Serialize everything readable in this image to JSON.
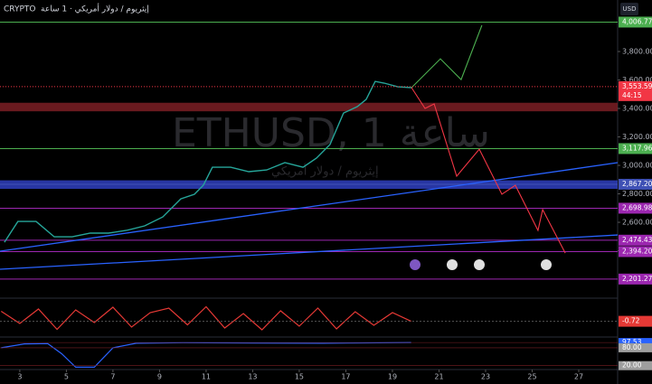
{
  "header": {
    "source": "CRYPTO",
    "description": "إيثريوم / دولار أمريكي · 1 ساعة",
    "currency": "USD"
  },
  "chart_data": {
    "type": "line",
    "title": "ETHUSD, 1 ساعة",
    "subtitle": "إيثريوم / دولار أمريكي",
    "x": [
      2.34,
      2.92,
      3.7,
      4.48,
      5.25,
      6.03,
      6.81,
      7.58,
      8.36,
      9.14,
      9.91,
      10.5,
      10.88,
      11.27,
      12.05,
      12.83,
      13.6,
      14.38,
      15.16,
      15.74,
      16.32,
      16.9,
      17.49,
      17.87,
      18.26,
      18.65,
      19.23,
      19.82
    ],
    "series": [
      {
        "color": "#26a69a",
        "values": [
          2460,
          2606,
          2606,
          2498,
          2498,
          2524,
          2524,
          2543,
          2575,
          2638,
          2765,
          2797,
          2860,
          2987,
          2987,
          2956,
          2968,
          3019,
          2987,
          3051,
          3146,
          3368,
          3413,
          3463,
          3590,
          3578,
          3552,
          3546
        ]
      }
    ],
    "xlim": [
      2.15,
      28.67
    ],
    "ylim": [
      2067,
      4162
    ],
    "xticks": [
      3,
      5,
      7,
      9,
      11,
      13,
      15,
      17,
      19,
      21,
      23,
      25,
      27
    ],
    "yticks": [
      {
        "value": 2400,
        "label": "2,400.00"
      },
      {
        "value": 2600,
        "label": "2,600.00"
      },
      {
        "value": 2800,
        "label": "2,800.00"
      },
      {
        "value": 3000,
        "label": "3,000.00"
      },
      {
        "value": 3200,
        "label": "3,200.00"
      },
      {
        "value": 3400,
        "label": "3,400.00"
      },
      {
        "value": 3600,
        "label": "3,600.00"
      },
      {
        "value": 3800,
        "label": "3,800.00"
      }
    ],
    "levels": [
      {
        "value": 4006.77,
        "label": "4,006.77",
        "color": "#4caf50"
      },
      {
        "value": 3117.96,
        "label": "3,117.96",
        "color": "#4caf50"
      },
      {
        "value": 2867.2,
        "label": "2,867.20",
        "color": "#3f51b5"
      },
      {
        "value": 2698.98,
        "label": "2,698.98",
        "color": "#9c27b0"
      },
      {
        "value": 2474.43,
        "label": "2,474.43",
        "color": "#9c27b0"
      },
      {
        "value": 2394.2,
        "label": "2,394.20",
        "color": "#9c27b0"
      },
      {
        "value": 2201.27,
        "label": "2,201.27",
        "color": "#9c27b0"
      }
    ],
    "zones": [
      {
        "from": 3380,
        "to": 3440,
        "color": "#7b1f24"
      },
      {
        "from": 2835,
        "to": 2895,
        "color": "#2f3fc0"
      }
    ],
    "trendlines": [
      {
        "x": [
          2.15,
          28.67
        ],
        "y": [
          2397,
          3019
        ],
        "color": "#2962ff"
      },
      {
        "x": [
          2.15,
          28.67
        ],
        "y": [
          2270,
          2511
        ],
        "color": "#2962ff"
      }
    ],
    "projections": [
      {
        "color": "#4caf50",
        "x": [
          19.82,
          21.06,
          21.95,
          22.84
        ],
        "values": [
          3546,
          3749,
          3603,
          3984
        ]
      },
      {
        "color": "#f23645",
        "x": [
          19.82,
          20.4,
          20.79,
          21.76,
          22.73,
          23.7,
          24.28,
          25.25,
          25.45,
          26.42
        ],
        "values": [
          3546,
          3400,
          3432,
          2924,
          3114,
          2797,
          2860,
          2543,
          2689,
          2384
        ]
      }
    ],
    "last_price": {
      "value": 3553.59,
      "label": "3,553.59",
      "countdown": "44:15",
      "color": "#f23645"
    },
    "indicators": [
      {
        "color": "#e53935",
        "ylim": [
          -4,
          4
        ],
        "x": [
          2.2,
          3.0,
          3.8,
          4.6,
          5.4,
          6.2,
          7.0,
          7.8,
          8.6,
          9.4,
          10.2,
          11.0,
          11.8,
          12.6,
          13.4,
          14.2,
          15.0,
          15.8,
          16.6,
          17.4,
          18.2,
          19.0,
          19.8
        ],
        "values": [
          1.5,
          -1.2,
          2.0,
          -2.5,
          1.8,
          -1.0,
          2.4,
          -2.0,
          1.2,
          2.2,
          -1.5,
          2.5,
          -2.2,
          1.0,
          -2.6,
          1.6,
          -1.8,
          2.2,
          -2.4,
          1.4,
          -1.6,
          1.2,
          -0.72
        ],
        "last": {
          "value": -0.72,
          "label": "-0.72"
        }
      },
      {
        "color": "#2962ff",
        "ylim": [
          10,
          110
        ],
        "x": [
          2.2,
          3.2,
          4.2,
          4.8,
          5.4,
          6.2,
          7.0,
          8.0,
          10.0,
          13.0,
          16.0,
          19.8
        ],
        "values": [
          80,
          93,
          94,
          60,
          15,
          15,
          80,
          95,
          97,
          96,
          95,
          97.53
        ],
        "levels": [
          {
            "value": 97.53,
            "label": "97.53",
            "color": "#2962ff"
          },
          {
            "value": 80,
            "label": "80.00",
            "color": "#9e9e9e"
          },
          {
            "value": 20,
            "label": "20.00",
            "color": "#9e9e9e"
          }
        ]
      }
    ]
  }
}
